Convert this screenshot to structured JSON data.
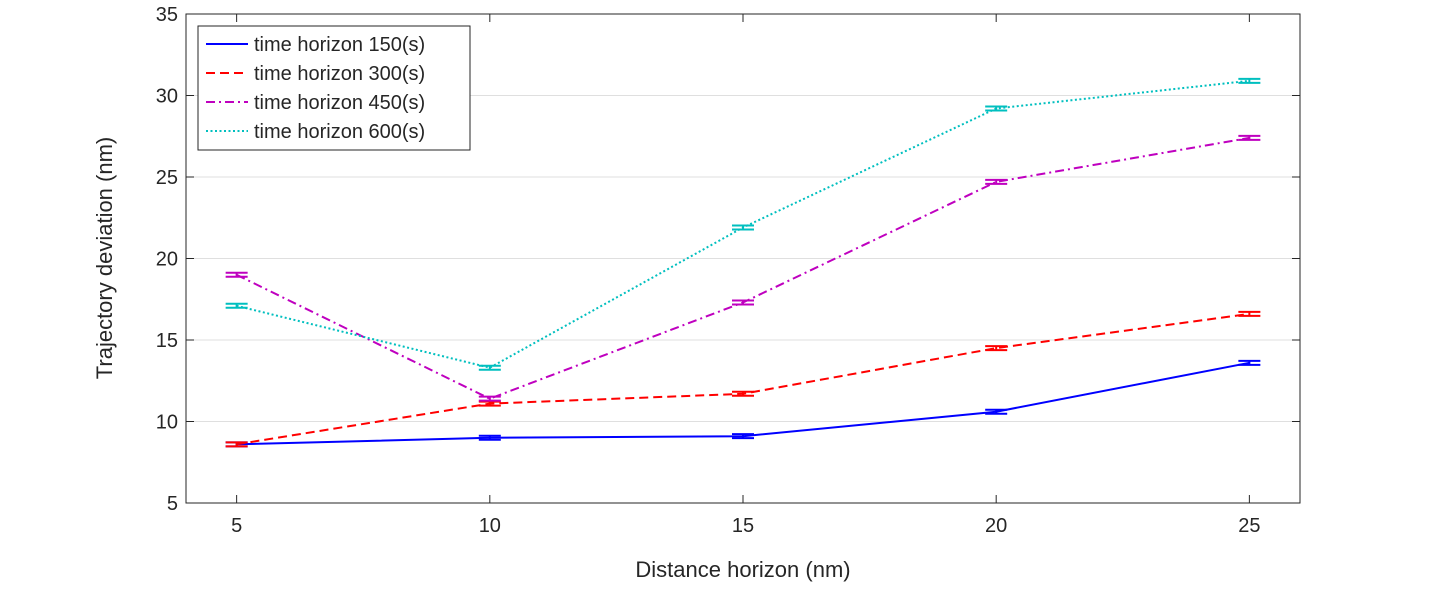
{
  "chart_data": {
    "type": "line",
    "title": "",
    "xlabel": "Distance horizon (nm)",
    "ylabel": "Trajectory deviation (nm)",
    "x": [
      5,
      10,
      15,
      20,
      25
    ],
    "xlim": [
      4,
      26
    ],
    "ylim": [
      5,
      35
    ],
    "xticks": [
      5,
      10,
      15,
      20,
      25
    ],
    "yticks": [
      5,
      10,
      15,
      20,
      25,
      30,
      35
    ],
    "grid": "y-major",
    "legend_position": "top-left",
    "series": [
      {
        "name": "time horizon 150(s)",
        "color": "#0000ff",
        "style": "solid",
        "values": [
          8.6,
          9.0,
          9.1,
          10.6,
          13.6
        ]
      },
      {
        "name": "time horizon 300(s)",
        "color": "#ff0000",
        "style": "dashed",
        "values": [
          8.6,
          11.1,
          11.7,
          14.5,
          16.6
        ]
      },
      {
        "name": "time horizon 450(s)",
        "color": "#bf00bf",
        "style": "dashdot",
        "values": [
          19.0,
          11.4,
          17.3,
          24.7,
          27.4
        ]
      },
      {
        "name": "time horizon 600(s)",
        "color": "#00bfbf",
        "style": "dotted",
        "values": [
          17.1,
          13.3,
          21.9,
          29.2,
          30.9
        ]
      }
    ]
  }
}
